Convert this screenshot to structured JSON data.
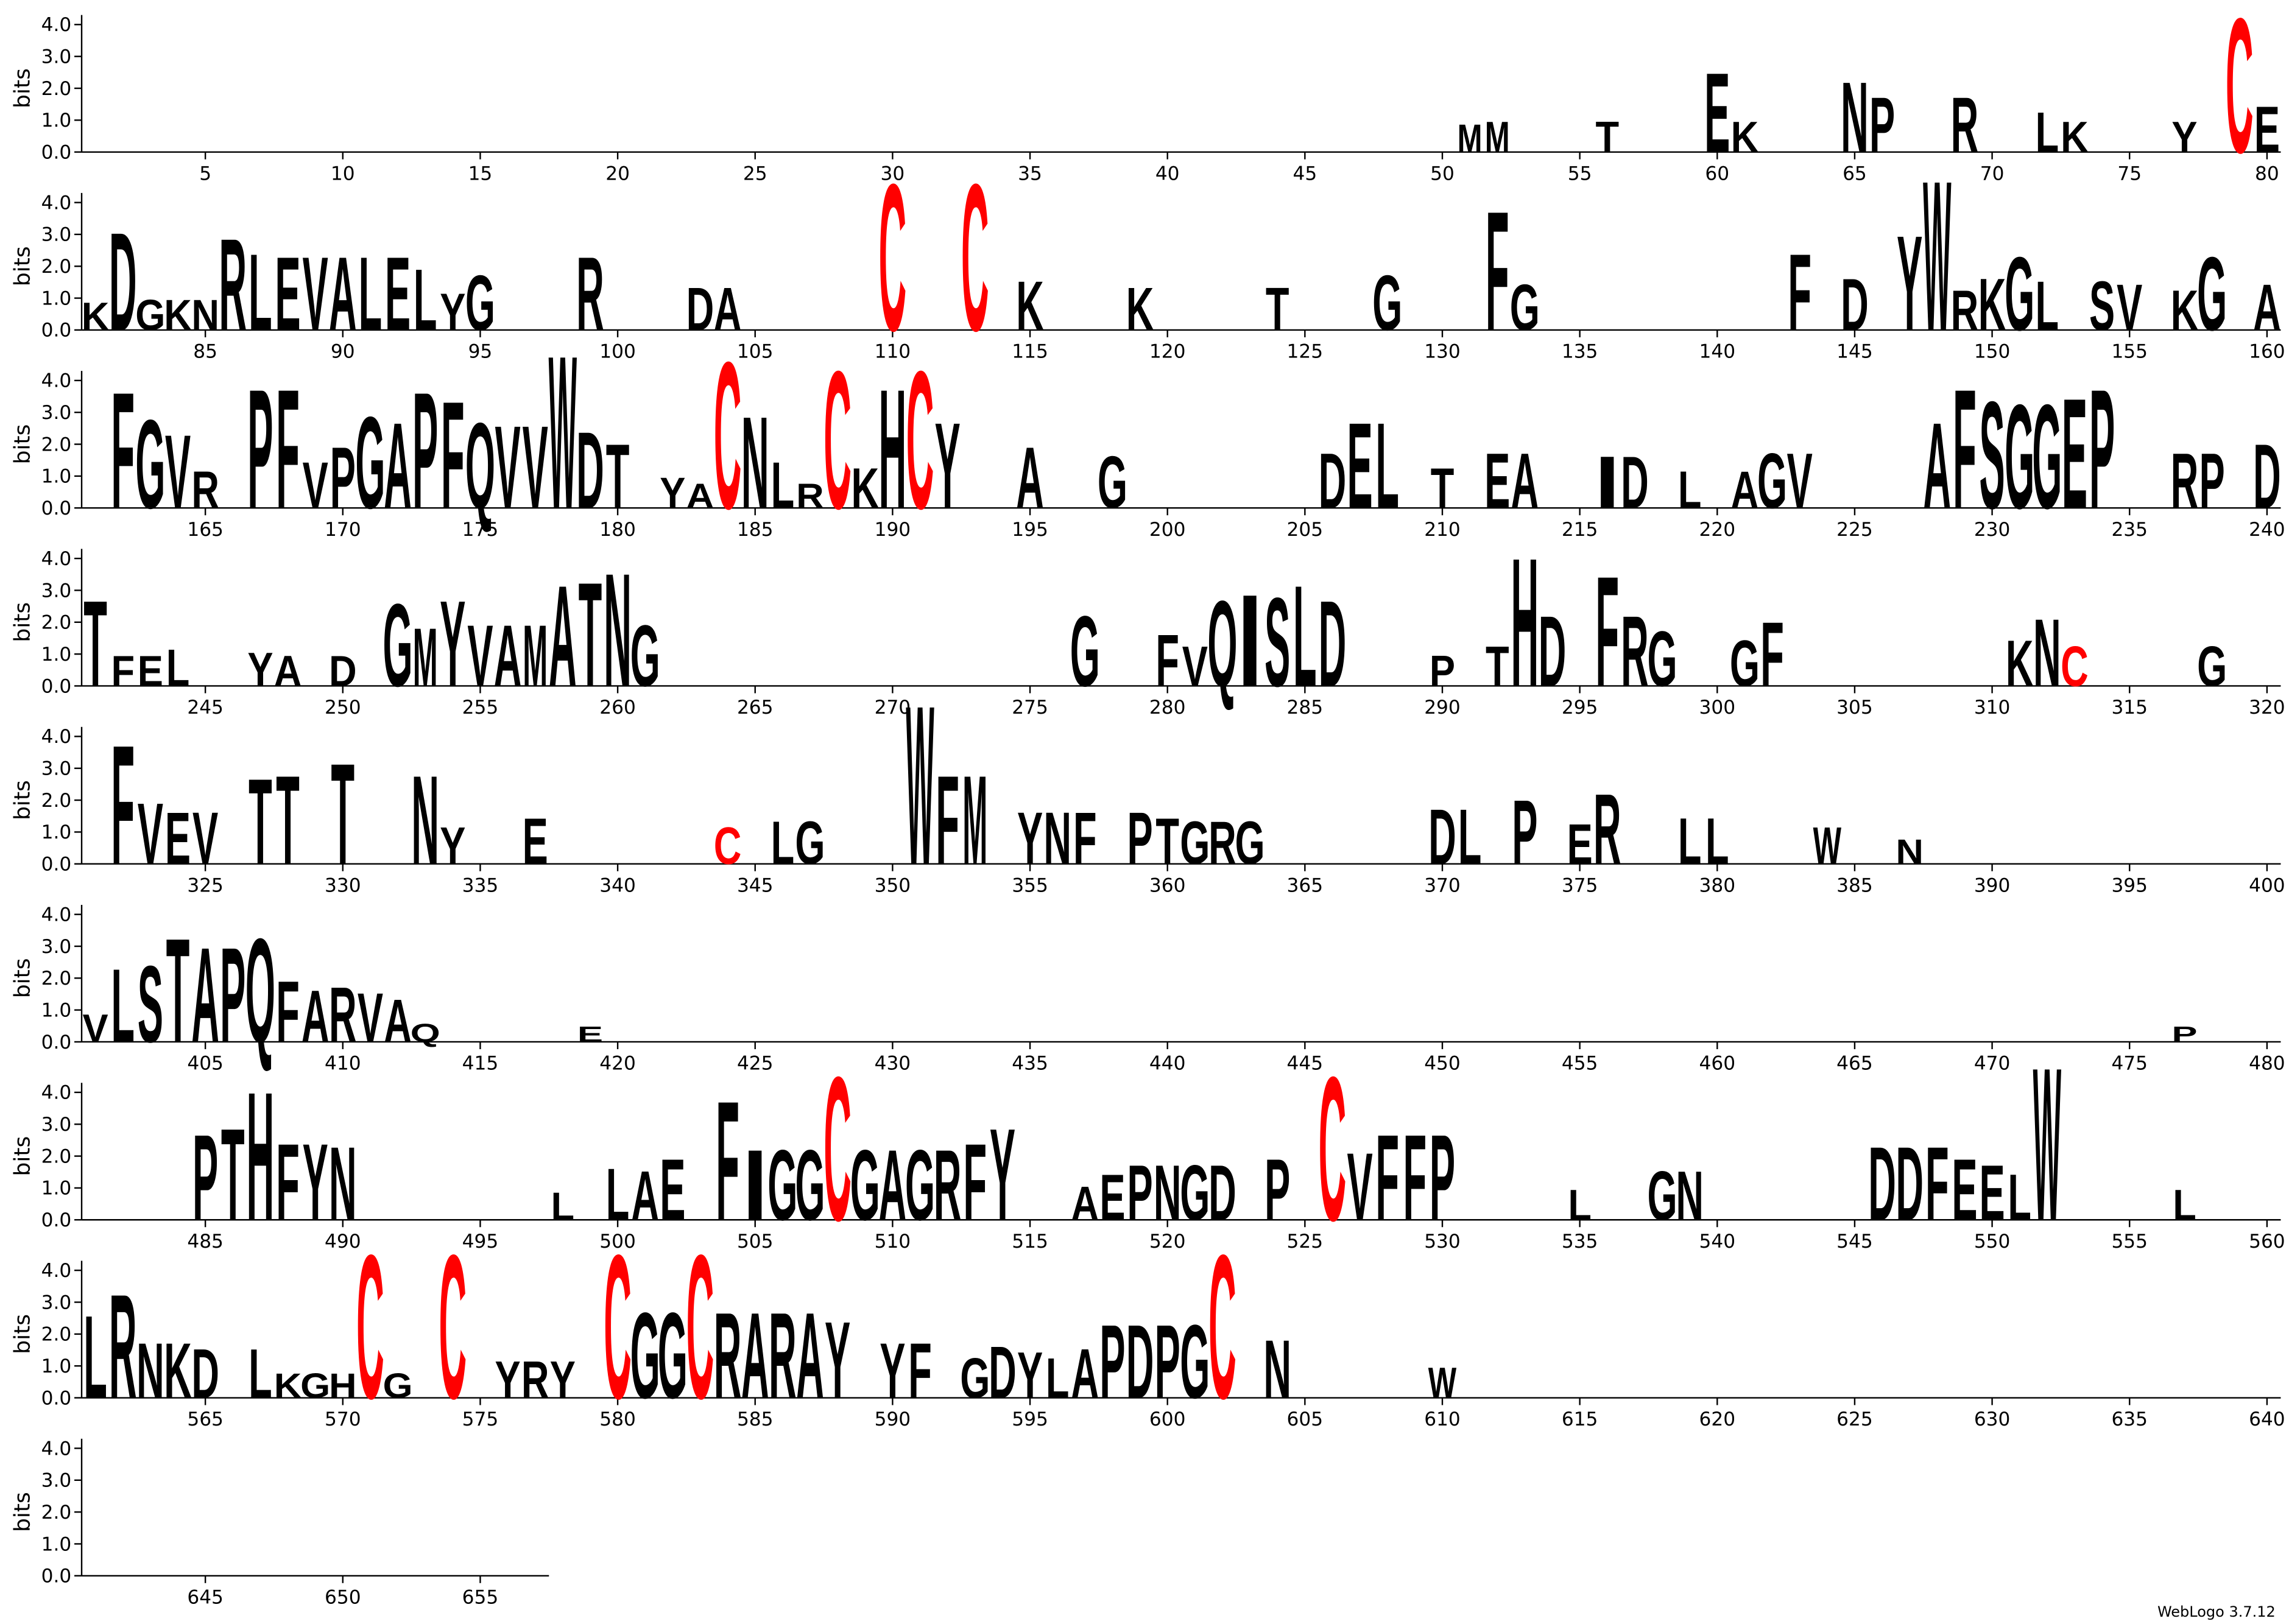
{
  "chart_data": [
    {
      "type": "logo",
      "ylabel": "bits",
      "color": "#000000",
      "colors": {
        "C": "#ff0000"
      },
      "xlim": [
        0.5,
        80.5
      ],
      "xticks": [
        5,
        10,
        15,
        20,
        25,
        30,
        35,
        40,
        45,
        50,
        55,
        60,
        65,
        70,
        75,
        80
      ],
      "ylim": [
        0,
        4.3
      ],
      "yticks": [
        {
          "value": 0,
          "label": "0.0"
        },
        {
          "value": 1,
          "label": "1.0"
        },
        {
          "value": 2,
          "label": "2.0"
        },
        {
          "value": 3,
          "label": "3.0"
        },
        {
          "value": 4,
          "label": "4.0"
        }
      ],
      "positions": [
        51,
        52,
        56,
        60,
        61,
        65,
        66,
        69,
        72,
        73,
        77,
        79,
        80
      ],
      "letters": [
        "M",
        "M",
        "T",
        "E",
        "K",
        "N",
        "P",
        "R",
        "L",
        "K",
        "Y",
        "C",
        "E"
      ],
      "values": [
        0.9,
        1.0,
        1.0,
        2.6,
        1.0,
        2.3,
        1.8,
        1.8,
        1.3,
        1.0,
        1.0,
        4.4,
        1.5
      ]
    },
    {
      "type": "logo",
      "ylabel": "bits",
      "color": "#000000",
      "colors": {
        "C": "#ff0000"
      },
      "xlim": [
        80.5,
        160.5
      ],
      "xticks": [
        85,
        90,
        95,
        100,
        105,
        110,
        115,
        120,
        125,
        130,
        135,
        140,
        145,
        150,
        155,
        160
      ],
      "ylim": [
        0,
        4.3
      ],
      "yticks": [
        {
          "value": 0,
          "label": "0.0"
        },
        {
          "value": 1,
          "label": "1.0"
        },
        {
          "value": 2,
          "label": "2.0"
        },
        {
          "value": 3,
          "label": "3.0"
        },
        {
          "value": 4,
          "label": "4.0"
        }
      ],
      "positions": [
        81,
        82,
        83,
        84,
        85,
        86,
        87,
        88,
        89,
        90,
        91,
        92,
        93,
        94,
        95,
        99,
        103,
        104,
        110,
        113,
        115,
        119,
        124,
        128,
        132,
        133,
        143,
        145,
        147,
        148,
        149,
        150,
        151,
        152,
        154,
        155,
        157,
        158,
        160
      ],
      "letters": [
        "K",
        "D",
        "G",
        "K",
        "N",
        "R",
        "L",
        "E",
        "V",
        "A",
        "L",
        "E",
        "L",
        "Y",
        "G",
        "R",
        "D",
        "A",
        "C",
        "C",
        "K",
        "K",
        "T",
        "G",
        "F",
        "G",
        "F",
        "D",
        "Y",
        "W",
        "R",
        "K",
        "G",
        "L",
        "S",
        "V",
        "K",
        "G",
        "A"
      ],
      "values": [
        0.9,
        3.2,
        1.0,
        1.0,
        1.0,
        3.0,
        2.5,
        2.4,
        2.4,
        2.4,
        2.4,
        2.4,
        2.0,
        1.2,
        1.8,
        2.4,
        1.4,
        1.4,
        4.8,
        4.8,
        1.6,
        1.4,
        1.4,
        1.8,
        3.9,
        1.5,
        2.5,
        1.7,
        3.1,
        4.9,
        1.3,
        1.7,
        2.4,
        1.6,
        1.6,
        1.5,
        1.3,
        2.4,
        1.5
      ]
    },
    {
      "type": "logo",
      "ylabel": "bits",
      "color": "#000000",
      "colors": {
        "C": "#ff0000"
      },
      "xlim": [
        160.5,
        240.5
      ],
      "xticks": [
        165,
        170,
        175,
        180,
        185,
        190,
        195,
        200,
        205,
        210,
        215,
        220,
        225,
        230,
        235,
        240
      ],
      "ylim": [
        0,
        4.3
      ],
      "yticks": [
        {
          "value": 0,
          "label": "0.0"
        },
        {
          "value": 1,
          "label": "1.0"
        },
        {
          "value": 2,
          "label": "2.0"
        },
        {
          "value": 3,
          "label": "3.0"
        },
        {
          "value": 4,
          "label": "4.0"
        }
      ],
      "positions": [
        162,
        163,
        164,
        165,
        167,
        168,
        169,
        170,
        171,
        172,
        173,
        174,
        175,
        176,
        177,
        178,
        179,
        180,
        182,
        183,
        184,
        185,
        186,
        187,
        188,
        189,
        190,
        191,
        192,
        195,
        198,
        206,
        207,
        208,
        210,
        212,
        213,
        216,
        217,
        219,
        221,
        222,
        223,
        228,
        229,
        230,
        231,
        232,
        233,
        234,
        237,
        238,
        240
      ],
      "letters": [
        "F",
        "G",
        "V",
        "R",
        "P",
        "F",
        "V",
        "P",
        "G",
        "A",
        "P",
        "F",
        "Q",
        "V",
        "V",
        "W",
        "D",
        "T",
        "Y",
        "A",
        "C",
        "N",
        "L",
        "R",
        "C",
        "K",
        "H",
        "C",
        "Y",
        "A",
        "G",
        "D",
        "E",
        "L",
        "T",
        "E",
        "A",
        "I",
        "D",
        "L",
        "A",
        "G",
        "V",
        "A",
        "F",
        "S",
        "G",
        "G",
        "E",
        "P",
        "R",
        "P",
        "D"
      ],
      "values": [
        3.8,
        2.9,
        2.4,
        1.2,
        3.9,
        3.9,
        1.5,
        2.0,
        3.0,
        2.8,
        3.8,
        3.5,
        2.8,
        2.7,
        2.7,
        5.0,
        2.5,
        2.1,
        1.0,
        0.8,
        4.8,
        3.0,
        1.5,
        0.8,
        4.5,
        1.3,
        3.9,
        4.5,
        2.8,
        2.0,
        1.7,
        1.8,
        2.8,
        2.8,
        1.3,
        1.8,
        1.8,
        1.7,
        1.7,
        1.2,
        1.2,
        1.8,
        1.8,
        2.8,
        3.9,
        3.5,
        3.4,
        3.4,
        3.6,
        3.9,
        1.8,
        1.8,
        2.1
      ]
    },
    {
      "type": "logo",
      "ylabel": "bits",
      "color": "#000000",
      "colors": {
        "C": "#ff0000"
      },
      "xlim": [
        240.5,
        320.5
      ],
      "xticks": [
        245,
        250,
        255,
        260,
        265,
        270,
        275,
        280,
        285,
        290,
        295,
        300,
        305,
        310,
        315,
        320
      ],
      "ylim": [
        0,
        4.3
      ],
      "yticks": [
        {
          "value": 0,
          "label": "0.0"
        },
        {
          "value": 1,
          "label": "1.0"
        },
        {
          "value": 2,
          "label": "2.0"
        },
        {
          "value": 3,
          "label": "3.0"
        },
        {
          "value": 4,
          "label": "4.0"
        }
      ],
      "positions": [
        241,
        242,
        243,
        244,
        247,
        248,
        250,
        252,
        253,
        254,
        255,
        256,
        257,
        258,
        259,
        260,
        261,
        277,
        280,
        281,
        282,
        283,
        284,
        285,
        286,
        290,
        292,
        293,
        294,
        296,
        297,
        298,
        301,
        302,
        311,
        312,
        313,
        318
      ],
      "letters": [
        "T",
        "F",
        "E",
        "L",
        "Y",
        "A",
        "D",
        "G",
        "M",
        "Y",
        "V",
        "A",
        "M",
        "A",
        "T",
        "N",
        "G",
        "G",
        "F",
        "V",
        "Q",
        "I",
        "S",
        "L",
        "D",
        "P",
        "T",
        "H",
        "D",
        "F",
        "R",
        "G",
        "G",
        "F",
        "K",
        "N",
        "C",
        "G"
      ],
      "values": [
        2.8,
        1.0,
        1.0,
        1.2,
        1.1,
        1.0,
        1.0,
        2.7,
        1.9,
        2.8,
        2.0,
        2.0,
        2.0,
        3.3,
        3.4,
        3.7,
        2.0,
        2.3,
        1.7,
        1.3,
        2.8,
        3.0,
        2.9,
        3.3,
        2.8,
        1.0,
        1.3,
        4.2,
        2.3,
        3.6,
        2.3,
        1.8,
        1.5,
        2.1,
        1.5,
        2.2,
        1.3,
        1.3
      ]
    },
    {
      "type": "logo",
      "ylabel": "bits",
      "color": "#000000",
      "colors": {
        "C": "#ff0000"
      },
      "xlim": [
        320.5,
        400.5
      ],
      "xticks": [
        325,
        330,
        335,
        340,
        345,
        350,
        355,
        360,
        365,
        370,
        375,
        380,
        385,
        390,
        395,
        400
      ],
      "ylim": [
        0,
        4.3
      ],
      "yticks": [
        {
          "value": 0,
          "label": "0.0"
        },
        {
          "value": 1,
          "label": "1.0"
        },
        {
          "value": 2,
          "label": "2.0"
        },
        {
          "value": 3,
          "label": "3.0"
        },
        {
          "value": 4,
          "label": "4.0"
        }
      ],
      "positions": [
        322,
        323,
        324,
        325,
        327,
        328,
        330,
        333,
        334,
        337,
        344,
        346,
        347,
        351,
        352,
        353,
        355,
        356,
        357,
        359,
        360,
        361,
        362,
        363,
        370,
        371,
        373,
        375,
        376,
        379,
        380,
        384,
        387
      ],
      "letters": [
        "F",
        "V",
        "E",
        "V",
        "T",
        "T",
        "T",
        "N",
        "Y",
        "E",
        "C",
        "L",
        "G",
        "W",
        "F",
        "M",
        "Y",
        "N",
        "F",
        "P",
        "T",
        "G",
        "R",
        "G",
        "D",
        "L",
        "P",
        "E",
        "R",
        "L",
        "L",
        "W",
        "N"
      ],
      "values": [
        3.9,
        2.0,
        1.7,
        1.7,
        2.8,
        2.9,
        3.3,
        2.9,
        1.2,
        1.5,
        1.2,
        1.4,
        1.4,
        5.2,
        2.9,
        2.9,
        1.7,
        1.7,
        1.7,
        1.7,
        1.5,
        1.4,
        1.4,
        1.4,
        1.8,
        1.8,
        2.1,
        1.3,
        2.3,
        1.5,
        1.5,
        1.2,
        0.8
      ]
    },
    {
      "type": "logo",
      "ylabel": "bits",
      "color": "#000000",
      "colors": {
        "C": "#ff0000"
      },
      "xlim": [
        400.5,
        480.5
      ],
      "xticks": [
        405,
        410,
        415,
        420,
        425,
        430,
        435,
        440,
        445,
        450,
        455,
        460,
        465,
        470,
        475,
        480
      ],
      "ylim": [
        0,
        4.3
      ],
      "yticks": [
        {
          "value": 0,
          "label": "0.0"
        },
        {
          "value": 1,
          "label": "1.0"
        },
        {
          "value": 2,
          "label": "2.0"
        },
        {
          "value": 3,
          "label": "3.0"
        },
        {
          "value": 4,
          "label": "4.0"
        }
      ],
      "positions": [
        401,
        402,
        403,
        404,
        405,
        406,
        407,
        408,
        409,
        410,
        411,
        412,
        413,
        419,
        477
      ],
      "letters": [
        "V",
        "L",
        "S",
        "T",
        "A",
        "P",
        "Q",
        "F",
        "A",
        "R",
        "V",
        "A",
        "Q",
        "E",
        "P"
      ],
      "values": [
        0.9,
        2.4,
        2.5,
        3.4,
        3.1,
        3.1,
        3.4,
        2.0,
        1.7,
        1.8,
        1.6,
        1.4,
        0.6,
        0.5,
        0.5
      ]
    },
    {
      "type": "logo",
      "ylabel": "bits",
      "color": "#000000",
      "colors": {
        "C": "#ff0000"
      },
      "xlim": [
        480.5,
        560.5
      ],
      "xticks": [
        485,
        490,
        495,
        500,
        505,
        510,
        515,
        520,
        525,
        530,
        535,
        540,
        545,
        550,
        555,
        560
      ],
      "ylim": [
        0,
        4.3
      ],
      "yticks": [
        {
          "value": 0,
          "label": "0.0"
        },
        {
          "value": 1,
          "label": "1.0"
        },
        {
          "value": 2,
          "label": "2.0"
        },
        {
          "value": 3,
          "label": "3.0"
        },
        {
          "value": 4,
          "label": "4.0"
        }
      ],
      "positions": [
        485,
        486,
        487,
        488,
        489,
        490,
        498,
        500,
        501,
        502,
        504,
        505,
        506,
        507,
        508,
        509,
        510,
        511,
        512,
        513,
        514,
        517,
        518,
        519,
        520,
        521,
        522,
        524,
        526,
        527,
        528,
        529,
        530,
        535,
        538,
        539,
        546,
        547,
        548,
        549,
        550,
        551,
        552,
        557
      ],
      "letters": [
        "P",
        "T",
        "H",
        "F",
        "Y",
        "N",
        "L",
        "L",
        "A",
        "E",
        "F",
        "I",
        "G",
        "G",
        "C",
        "G",
        "A",
        "G",
        "R",
        "F",
        "Y",
        "A",
        "E",
        "P",
        "N",
        "G",
        "D",
        "P",
        "C",
        "V",
        "F",
        "F",
        "P",
        "L",
        "G",
        "N",
        "D",
        "D",
        "F",
        "E",
        "E",
        "L",
        "W",
        "L"
      ],
      "values": [
        2.8,
        3.0,
        4.2,
        2.5,
        2.5,
        2.4,
        0.9,
        1.7,
        1.6,
        2.0,
        3.9,
        2.3,
        2.3,
        2.3,
        4.7,
        2.3,
        2.3,
        2.3,
        2.3,
        2.5,
        3.0,
        1.1,
        1.5,
        1.8,
        1.8,
        1.8,
        1.8,
        2.0,
        4.7,
        2.2,
        2.8,
        2.8,
        2.8,
        1.0,
        1.6,
        1.6,
        2.4,
        2.4,
        2.4,
        2.0,
        1.8,
        1.5,
        5.0,
        1.0
      ]
    },
    {
      "type": "logo",
      "ylabel": "bits",
      "color": "#000000",
      "colors": {
        "C": "#ff0000"
      },
      "xlim": [
        560.5,
        640.5
      ],
      "xticks": [
        565,
        570,
        575,
        580,
        585,
        590,
        595,
        600,
        605,
        610,
        615,
        620,
        625,
        630,
        635,
        640
      ],
      "ylim": [
        0,
        4.3
      ],
      "yticks": [
        {
          "value": 0,
          "label": "0.0"
        },
        {
          "value": 1,
          "label": "1.0"
        },
        {
          "value": 2,
          "label": "2.0"
        },
        {
          "value": 3,
          "label": "3.0"
        },
        {
          "value": 4,
          "label": "4.0"
        }
      ],
      "positions": [
        561,
        562,
        563,
        564,
        565,
        567,
        568,
        569,
        570,
        571,
        572,
        574,
        576,
        577,
        578,
        580,
        581,
        582,
        583,
        584,
        585,
        586,
        587,
        588,
        590,
        591,
        593,
        594,
        595,
        596,
        597,
        598,
        599,
        600,
        601,
        602,
        604,
        610
      ],
      "letters": [
        "L",
        "R",
        "N",
        "K",
        "D",
        "L",
        "K",
        "G",
        "H",
        "C",
        "G",
        "C",
        "Y",
        "R",
        "Y",
        "C",
        "G",
        "G",
        "C",
        "R",
        "A",
        "R",
        "A",
        "Y",
        "Y",
        "F",
        "G",
        "D",
        "Y",
        "L",
        "A",
        "P",
        "D",
        "P",
        "G",
        "C",
        "N",
        "W"
      ],
      "values": [
        2.7,
        3.4,
        1.8,
        1.8,
        1.6,
        1.6,
        0.8,
        0.8,
        0.8,
        4.7,
        0.8,
        4.7,
        1.2,
        1.2,
        1.2,
        4.7,
        2.8,
        2.8,
        4.7,
        2.8,
        2.8,
        2.8,
        2.8,
        2.5,
        1.8,
        1.8,
        1.3,
        1.7,
        1.5,
        1.3,
        1.6,
        2.4,
        2.4,
        2.4,
        2.4,
        4.7,
        1.9,
        1.0
      ]
    },
    {
      "type": "logo",
      "ylabel": "bits",
      "color": "#000000",
      "colors": {
        "C": "#ff0000"
      },
      "xlim": [
        640.5,
        657.5
      ],
      "xticks": [
        645,
        650,
        655
      ],
      "ylim": [
        0,
        4.3
      ],
      "yticks": [
        {
          "value": 0,
          "label": "0.0"
        },
        {
          "value": 1,
          "label": "1.0"
        },
        {
          "value": 2,
          "label": "2.0"
        },
        {
          "value": 3,
          "label": "3.0"
        },
        {
          "value": 4,
          "label": "4.0"
        }
      ],
      "positions": [],
      "letters": [],
      "values": []
    }
  ],
  "footer": "WebLogo 3.7.12"
}
